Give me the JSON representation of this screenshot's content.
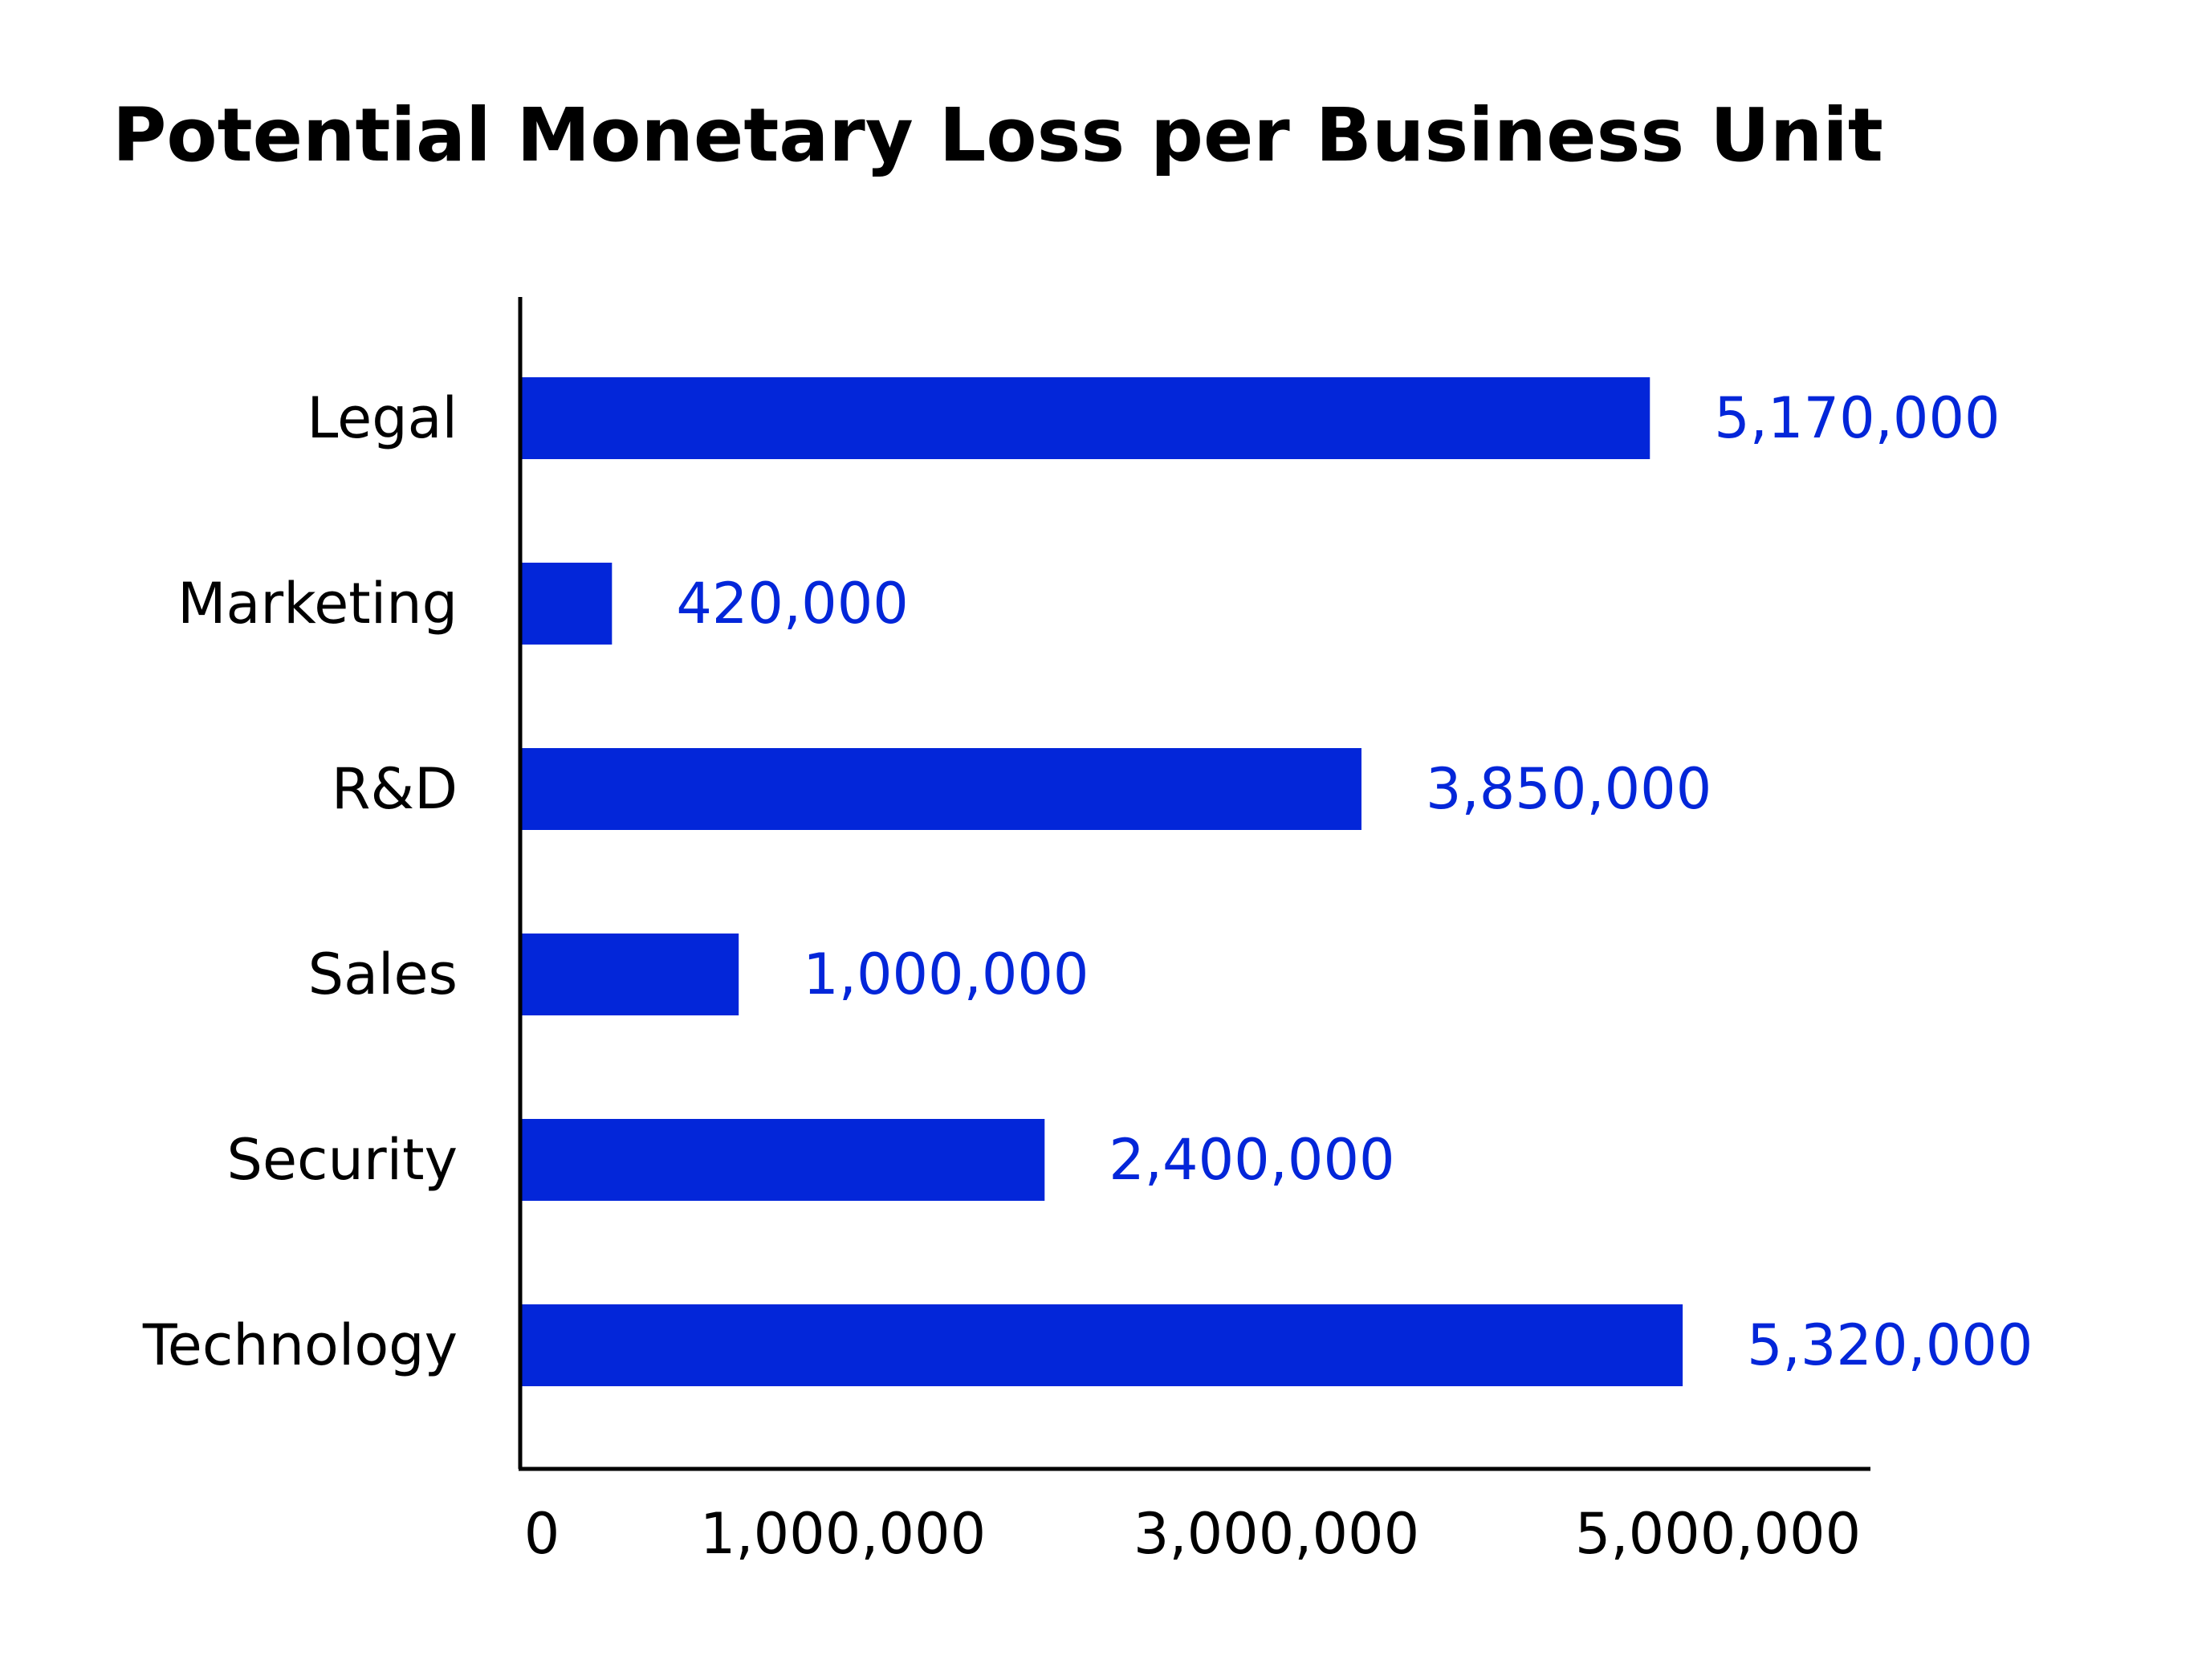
{
  "colors": {
    "bar": "#0326d9",
    "value_label": "#0326d9",
    "axis": "#000000",
    "text": "#000000",
    "background": "#ffffff"
  },
  "chart_data": {
    "type": "bar",
    "orientation": "horizontal",
    "title": "Potential Monetary Loss per Business Unit",
    "xlabel": "",
    "ylabel": "",
    "categories": [
      "Legal",
      "Marketing",
      "R&D",
      "Sales",
      "Security",
      "Technology"
    ],
    "values": [
      5170000,
      420000,
      3850000,
      1000000,
      2400000,
      5320000
    ],
    "value_labels": [
      "5,170,000",
      "420,000",
      "3,850,000",
      "1,000,000",
      "2,400,000",
      "5,320,000"
    ],
    "x_ticks": [
      {
        "value": 0,
        "label": "0"
      },
      {
        "value": 1000000,
        "label": "1,000,000"
      },
      {
        "value": 3000000,
        "label": "3,000,000"
      },
      {
        "value": 5000000,
        "label": "5,000,000"
      }
    ],
    "xlim": [
      0,
      6300000
    ],
    "grid": false,
    "legend": "none"
  }
}
